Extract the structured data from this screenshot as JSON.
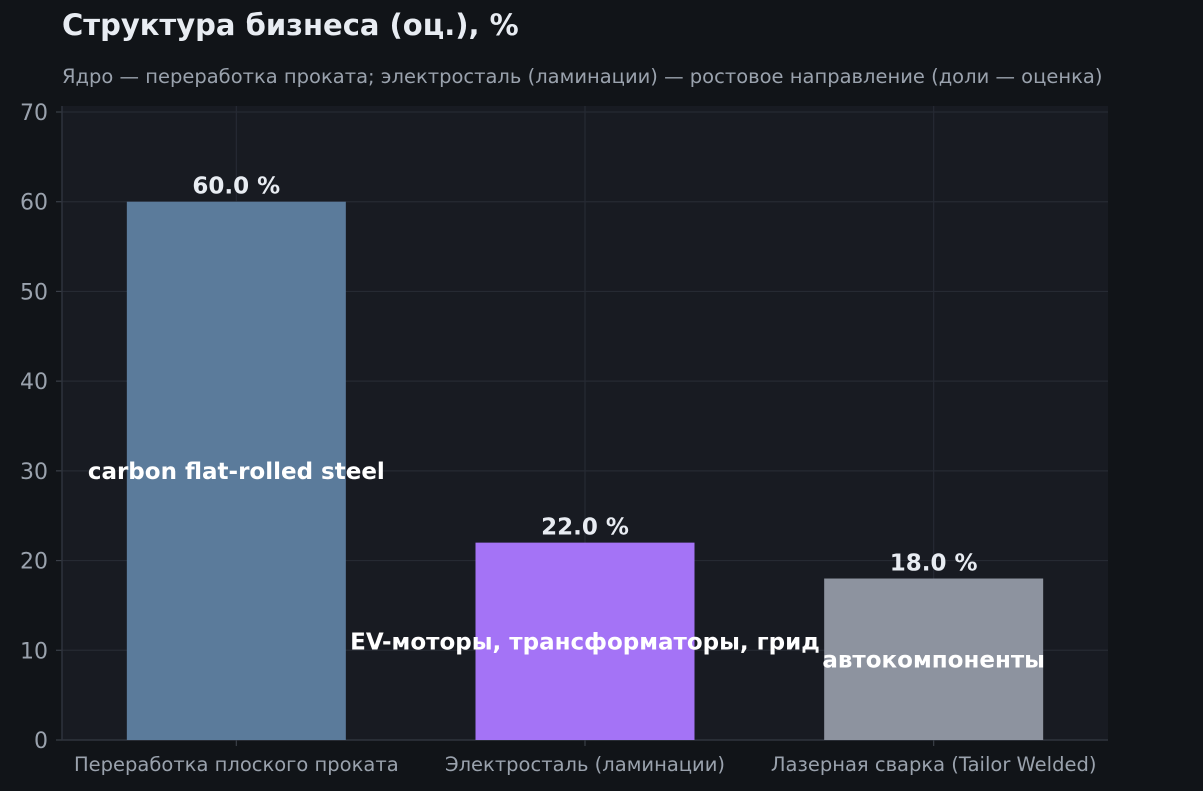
{
  "chart_data": {
    "type": "bar",
    "title": "Структура бизнеса (оц.), %",
    "subtitle": "Ядро — переработка проката; электросталь (ламинации) — ростовое направление (доли — оценка)",
    "categories": [
      "Переработка плоского проката",
      "Электросталь (ламинации)",
      "Лазерная сварка (Tailor Welded)"
    ],
    "values": [
      60.0,
      22.0,
      18.0
    ],
    "value_labels": [
      "60.0 %",
      "22.0 %",
      "18.0 %"
    ],
    "annotations": [
      "carbon flat-rolled steel",
      "EV-моторы, трансформаторы, грид",
      "автокомпоненты"
    ],
    "colors": [
      "#5b7b9b",
      "#a473f6",
      "#8d939f"
    ],
    "ylim": [
      0,
      70
    ],
    "yticks": [
      0,
      10,
      20,
      30,
      40,
      50,
      60,
      70
    ],
    "xlabel": "",
    "ylabel": "",
    "grid": true,
    "legend": "none"
  },
  "theme": {
    "background": "#111418",
    "plot_background": "#181b22",
    "grid_color": "#262a33",
    "tick_text": "#9aa2ad",
    "value_label_color": "#e8ecf2",
    "annotation_color": "#ffffff"
  }
}
